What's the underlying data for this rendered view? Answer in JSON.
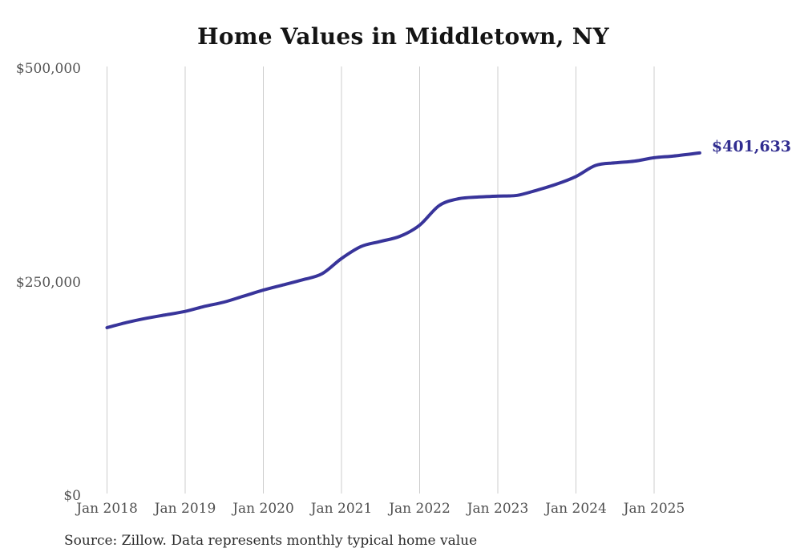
{
  "chart_data": {
    "type": "line",
    "title": "Home Values in Middletown, NY",
    "xlabel": "",
    "ylabel": "",
    "x_tick_labels": [
      "Jan 2018",
      "Jan 2019",
      "Jan 2020",
      "Jan 2021",
      "Jan 2022",
      "Jan 2023",
      "Jan 2024",
      "Jan 2025"
    ],
    "y_ticks": [
      0,
      250000,
      500000
    ],
    "y_tick_labels": [
      "$0",
      "$250,000",
      "$500,000"
    ],
    "ylim": [
      0,
      500000
    ],
    "grid": "vertical-only",
    "legend_position": "none",
    "end_label": "$401,633",
    "end_value": 401633,
    "line_color": "#38349a",
    "grid_color": "#cccccc",
    "series": [
      {
        "name": "Monthly typical home value",
        "points": [
          [
            "2018-01",
            197000
          ],
          [
            "2018-04",
            203000
          ],
          [
            "2018-07",
            208000
          ],
          [
            "2018-10",
            212000
          ],
          [
            "2019-01",
            216000
          ],
          [
            "2019-04",
            222000
          ],
          [
            "2019-07",
            227000
          ],
          [
            "2019-10",
            234000
          ],
          [
            "2020-01",
            241000
          ],
          [
            "2020-04",
            247000
          ],
          [
            "2020-07",
            253000
          ],
          [
            "2020-10",
            260000
          ],
          [
            "2021-01",
            278000
          ],
          [
            "2021-04",
            292000
          ],
          [
            "2021-07",
            298000
          ],
          [
            "2021-10",
            304000
          ],
          [
            "2022-01",
            317000
          ],
          [
            "2022-04",
            340000
          ],
          [
            "2022-07",
            348000
          ],
          [
            "2022-10",
            350000
          ],
          [
            "2023-01",
            351000
          ],
          [
            "2023-04",
            352000
          ],
          [
            "2023-07",
            358000
          ],
          [
            "2023-10",
            365000
          ],
          [
            "2024-01",
            374000
          ],
          [
            "2024-04",
            387000
          ],
          [
            "2024-07",
            390000
          ],
          [
            "2024-10",
            392000
          ],
          [
            "2025-01",
            396000
          ],
          [
            "2025-04",
            398000
          ],
          [
            "2025-08",
            401633
          ]
        ]
      }
    ]
  },
  "footer": {
    "source_note": "Source: Zillow. Data represents monthly typical home value"
  }
}
